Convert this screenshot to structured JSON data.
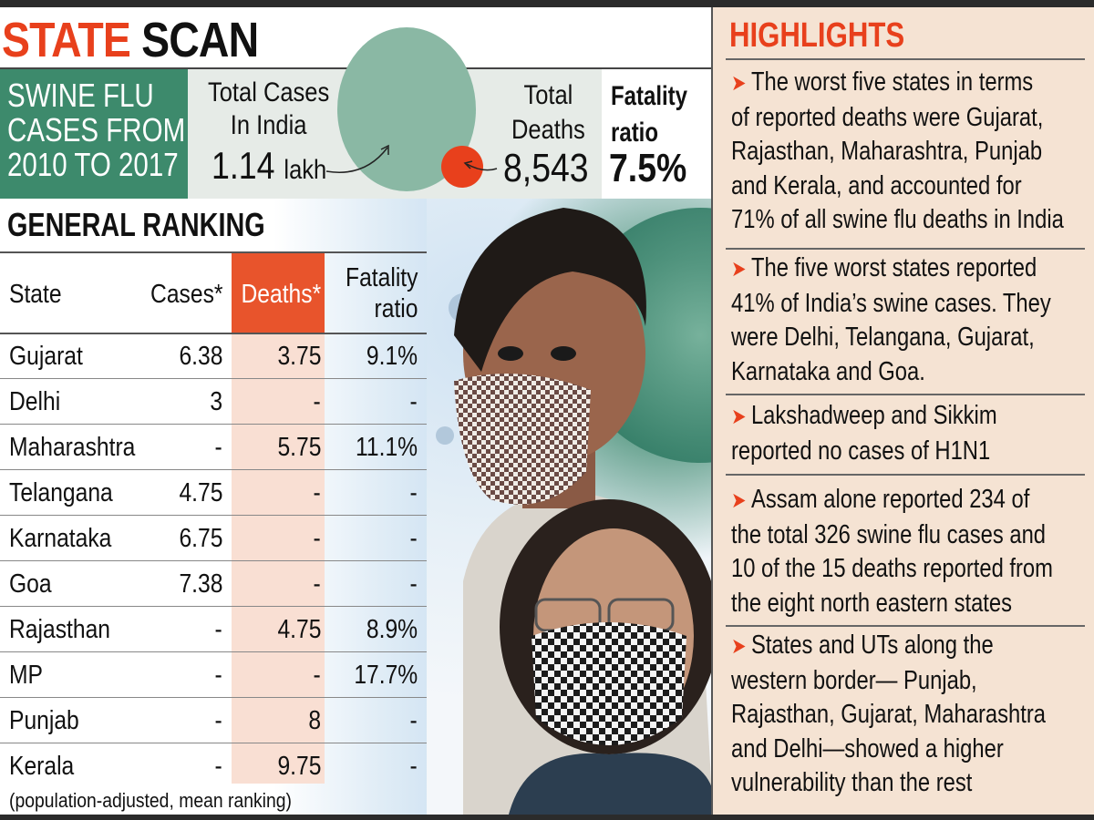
{
  "header": {
    "title_part1": "STATE",
    "title_part2": "SCAN"
  },
  "summary": {
    "label_lines": [
      "SWINE FLU",
      "CASES FROM",
      "2010 TO 2017"
    ],
    "total_cases_label_lines": [
      "Total Cases",
      "In India"
    ],
    "total_cases_value": "1.14",
    "total_cases_unit": "lakh",
    "total_deaths_label_lines": [
      "Total",
      "Deaths"
    ],
    "total_deaths_value": "8,543",
    "fatality_label_lines": [
      "Fatality",
      "ratio"
    ],
    "fatality_value": "7.5%"
  },
  "ranking": {
    "title": "GENERAL RANKING",
    "headers": {
      "state": "State",
      "cases": "Cases*",
      "deaths": "Deaths*",
      "fatality_lines": [
        "Fatality",
        "ratio"
      ]
    },
    "rows": [
      {
        "state": "Gujarat",
        "cases": "6.38",
        "deaths": "3.75",
        "fatality": "9.1%"
      },
      {
        "state": "Delhi",
        "cases": "3",
        "deaths": "-",
        "fatality": "-"
      },
      {
        "state": "Maharashtra",
        "cases": "-",
        "deaths": "5.75",
        "fatality": "11.1%"
      },
      {
        "state": "Telangana",
        "cases": "4.75",
        "deaths": "-",
        "fatality": "-"
      },
      {
        "state": "Karnataka",
        "cases": "6.75",
        "deaths": "-",
        "fatality": "-"
      },
      {
        "state": "Goa",
        "cases": "7.38",
        "deaths": "-",
        "fatality": "-"
      },
      {
        "state": "Rajasthan",
        "cases": "-",
        "deaths": "4.75",
        "fatality": "8.9%"
      },
      {
        "state": "MP",
        "cases": "-",
        "deaths": "-",
        "fatality": "17.7%"
      },
      {
        "state": "Punjab",
        "cases": "-",
        "deaths": "8",
        "fatality": "-"
      },
      {
        "state": "Kerala",
        "cases": "-",
        "deaths": "9.75",
        "fatality": "-"
      }
    ],
    "footnote": "(population-adjusted, mean ranking)"
  },
  "highlights": {
    "title": "HIGHLIGHTS",
    "items": [
      {
        "lines": [
          "The worst five states in terms",
          "of reported deaths were Gujarat,",
          "Rajasthan, Maharashtra, Punjab",
          "and Kerala, and accounted for",
          "71% of all swine flu deaths in India"
        ]
      },
      {
        "lines": [
          "The five worst states reported",
          "41% of India’s swine cases. They",
          "were Delhi, Telangana, Gujarat,",
          "Karnataka and Goa."
        ]
      },
      {
        "lines": [
          "Lakshadweep and Sikkim",
          "reported no cases of H1N1"
        ]
      },
      {
        "lines": [
          "Assam alone reported 234 of",
          "the total 326 swine flu cases and",
          "10 of the 15 deaths reported from",
          "the eight north eastern states"
        ]
      },
      {
        "lines": [
          "States and UTs along the",
          "western border— Punjab,",
          "Rajasthan, Gujarat, Maharashtra",
          "and Delhi—showed a higher",
          "vulnerability than the rest"
        ]
      }
    ]
  },
  "colors": {
    "accent": "#e8401c",
    "green": "#3d8a6c",
    "circle_green": "#8ab8a4",
    "panel": "#f5e3d3",
    "deaths_col": "#f9dfd3"
  }
}
